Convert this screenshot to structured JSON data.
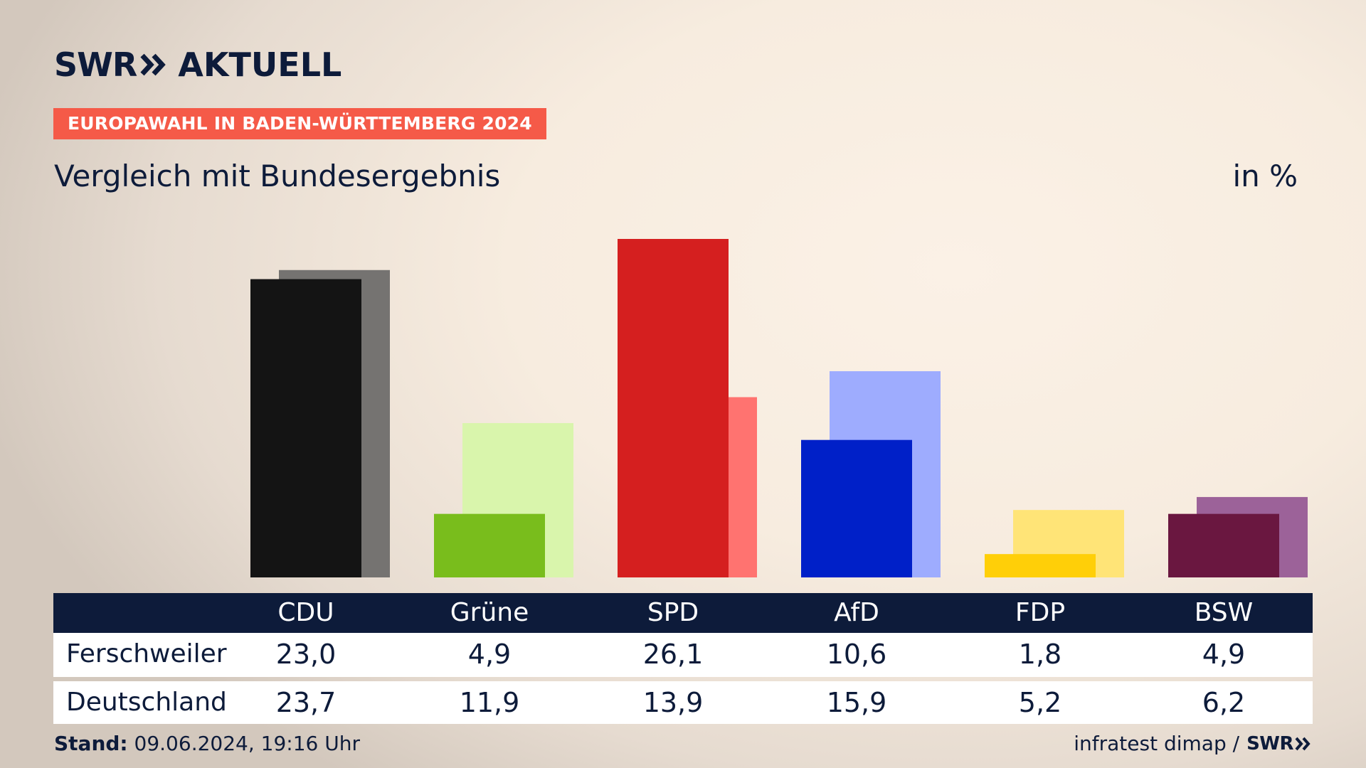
{
  "header": {
    "logo_swr": "SWR",
    "logo_aktuell": "AKTUELL",
    "kicker": "EUROPAWAHL IN BADEN-WÜRTTEMBERG 2024",
    "title": "Vergleich mit Bundesergebnis",
    "unit": "in %"
  },
  "chart_data": {
    "type": "bar",
    "categories": [
      "CDU",
      "Grüne",
      "SPD",
      "AfD",
      "FDP",
      "BSW"
    ],
    "series": [
      {
        "name": "Ferschweiler",
        "values": [
          23.0,
          4.9,
          26.1,
          10.6,
          1.8,
          4.9
        ],
        "display": [
          "23,0",
          "4,9",
          "26,1",
          "10,6",
          "1,8",
          "4,9"
        ]
      },
      {
        "name": "Deutschland",
        "values": [
          23.7,
          11.9,
          13.9,
          15.9,
          5.2,
          6.2
        ],
        "display": [
          "23,7",
          "11,9",
          "13,9",
          "15,9",
          "5,2",
          "6,2"
        ]
      }
    ],
    "colors": {
      "primary": [
        "#141414",
        "#79bd1c",
        "#d51f1f",
        "#0020c8",
        "#ffcf08",
        "#6a1740"
      ],
      "secondary": [
        "#757371",
        "#d9f5ac",
        "#ff7370",
        "#9eacfe",
        "#ffe477",
        "#9c6299"
      ]
    },
    "ylim": [
      0,
      26.1
    ]
  },
  "footer": {
    "stand_label": "Stand:",
    "stand_value": "09.06.2024, 19:16 Uhr",
    "source": "infratest dimap /",
    "source_logo": "SWR"
  },
  "colors": {
    "navy": "#0d1b3a",
    "kicker_bg": "#f55a48"
  }
}
